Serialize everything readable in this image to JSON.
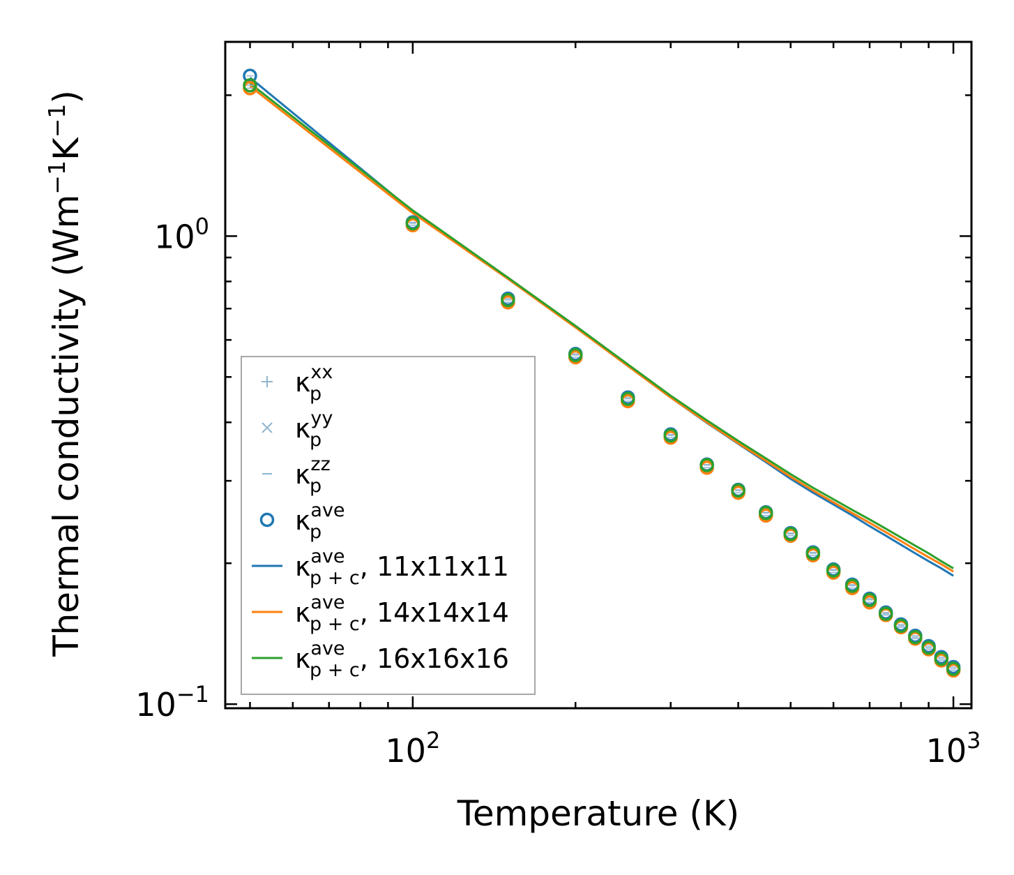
{
  "chart_data": {
    "type": "line",
    "xscale": "log",
    "yscale": "log",
    "xlabel": "Temperature (K)",
    "ylabel": {
      "base": "Thermal conductivity (Wm",
      "sup1": "−1",
      "mid": "K",
      "sup2": "−1",
      "end": ")"
    },
    "xlim": [
      45,
      1080
    ],
    "ylim": [
      0.098,
      2.6
    ],
    "xticks": [
      {
        "value": 100,
        "base": "10",
        "exp": "2"
      },
      {
        "value": 1000,
        "base": "10",
        "exp": "3"
      }
    ],
    "yticks": [
      {
        "value": 0.1,
        "base": "10",
        "exp": "−1"
      },
      {
        "value": 1,
        "base": "10",
        "exp": "0"
      }
    ],
    "colors": {
      "blue": "#1f77b4",
      "orange": "#ff7f0e",
      "green": "#2ca02c",
      "component": "#8fb4cf"
    },
    "T": [
      50,
      100,
      150,
      200,
      250,
      300,
      350,
      400,
      450,
      500,
      550,
      600,
      650,
      700,
      750,
      800,
      850,
      900,
      950,
      1000
    ],
    "scatter_series": [
      {
        "name": "11x11x11",
        "color": "#1f77b4",
        "values": [
          2.2,
          1.07,
          0.735,
          0.56,
          0.452,
          0.377,
          0.325,
          0.287,
          0.257,
          0.232,
          0.211,
          0.194,
          0.18,
          0.168,
          0.157,
          0.148,
          0.14,
          0.133,
          0.126,
          0.12
        ]
      },
      {
        "name": "14x14x14",
        "color": "#ff7f0e",
        "values": [
          2.07,
          1.055,
          0.722,
          0.551,
          0.444,
          0.371,
          0.32,
          0.283,
          0.253,
          0.229,
          0.208,
          0.191,
          0.177,
          0.165,
          0.155,
          0.146,
          0.138,
          0.131,
          0.124,
          0.118
        ]
      },
      {
        "name": "16x16x16",
        "color": "#2ca02c",
        "values": [
          2.1,
          1.065,
          0.73,
          0.557,
          0.449,
          0.375,
          0.324,
          0.286,
          0.256,
          0.231,
          0.21,
          0.193,
          0.179,
          0.167,
          0.156,
          0.147,
          0.139,
          0.132,
          0.125,
          0.119
        ]
      }
    ],
    "line_series": [
      {
        "name": "11x11x11",
        "color": "#1f77b4",
        "values": [
          2.18,
          1.13,
          0.81,
          0.64,
          0.528,
          0.452,
          0.399,
          0.36,
          0.329,
          0.303,
          0.283,
          0.267,
          0.253,
          0.24,
          0.229,
          0.219,
          0.21,
          0.202,
          0.195,
          0.188
        ]
      },
      {
        "name": "14x14x14",
        "color": "#ff7f0e",
        "values": [
          2.09,
          1.12,
          0.81,
          0.638,
          0.528,
          0.452,
          0.4,
          0.361,
          0.331,
          0.306,
          0.286,
          0.27,
          0.256,
          0.244,
          0.233,
          0.223,
          0.214,
          0.206,
          0.199,
          0.192
        ]
      },
      {
        "name": "16x16x16",
        "color": "#2ca02c",
        "values": [
          2.12,
          1.135,
          0.815,
          0.643,
          0.532,
          0.456,
          0.404,
          0.365,
          0.335,
          0.31,
          0.29,
          0.274,
          0.26,
          0.248,
          0.237,
          0.227,
          0.218,
          0.21,
          0.202,
          0.195
        ]
      }
    ],
    "legend": {
      "placement": "lower-left",
      "entries": [
        {
          "base": "κ",
          "sup": "xx",
          "sub": "p",
          "tail": "",
          "marker": "plus"
        },
        {
          "base": "κ",
          "sup": "yy",
          "sub": "p",
          "tail": "",
          "marker": "cross"
        },
        {
          "base": "κ",
          "sup": "zz",
          "sub": "p",
          "tail": "",
          "marker": "dash"
        },
        {
          "base": "κ",
          "sup": "ave",
          "sub": "p",
          "tail": "",
          "marker": "circle"
        },
        {
          "base": "κ",
          "sup": "ave",
          "sub": "p + c",
          "tail": ", 11x11x11",
          "marker": "line-blue"
        },
        {
          "base": "κ",
          "sup": "ave",
          "sub": "p + c",
          "tail": ", 14x14x14",
          "marker": "line-orange"
        },
        {
          "base": "κ",
          "sup": "ave",
          "sub": "p + c",
          "tail": ", 16x16x16",
          "marker": "line-green"
        }
      ]
    }
  }
}
